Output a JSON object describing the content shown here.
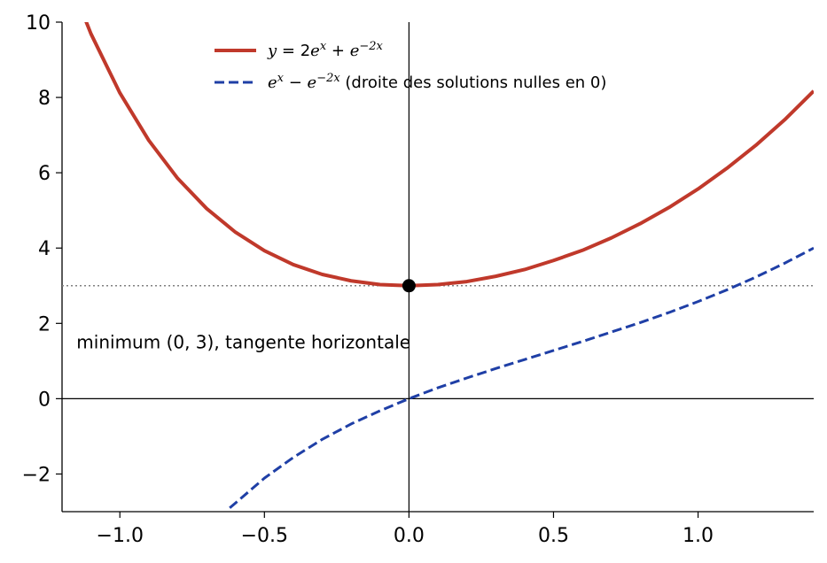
{
  "chart_data": {
    "type": "line",
    "xlim": [
      -1.2,
      1.4
    ],
    "ylim": [
      -3,
      10
    ],
    "x_ticks": [
      -1.0,
      -0.5,
      0.0,
      0.5,
      1.0
    ],
    "x_tick_labels": [
      "−1.0",
      "−0.5",
      "0.0",
      "0.5",
      "1.0"
    ],
    "y_ticks": [
      -2,
      0,
      2,
      4,
      6,
      8,
      10
    ],
    "y_tick_labels": [
      "−2",
      "0",
      "2",
      "4",
      "6",
      "8",
      "10"
    ],
    "grid": false,
    "legend_position": "top-center",
    "reference_line_y": 3,
    "series": [
      {
        "name_math": "y = 2e^x + e^{-2x}",
        "name_parts": [
          {
            "t": "y",
            "math": true
          },
          {
            "t": " = 2",
            "math": false
          },
          {
            "t": "e",
            "math": true
          },
          {
            "t": "x",
            "math": true,
            "sup": true
          },
          {
            "t": " + ",
            "math": false
          },
          {
            "t": "e",
            "math": true
          },
          {
            "t": "−2x",
            "math": true,
            "sup": true
          }
        ],
        "color": "#c0392b",
        "style": "solid",
        "x": [
          -1.2,
          -1.1,
          -1.0,
          -0.9,
          -0.8,
          -0.7,
          -0.6,
          -0.5,
          -0.4,
          -0.3,
          -0.2,
          -0.1,
          0.0,
          0.1,
          0.2,
          0.3,
          0.4,
          0.5,
          0.6,
          0.7,
          0.8,
          0.9,
          1.0,
          1.1,
          1.2,
          1.3,
          1.4
        ],
        "y": [
          11.62,
          9.69,
          8.12,
          6.86,
          5.85,
          5.05,
          4.42,
          3.93,
          3.56,
          3.3,
          3.13,
          3.03,
          3.0,
          3.03,
          3.11,
          3.25,
          3.43,
          3.67,
          3.94,
          4.27,
          4.65,
          5.08,
          5.57,
          6.12,
          6.73,
          7.41,
          8.17
        ]
      },
      {
        "name_parts": [
          {
            "t": "e",
            "math": true
          },
          {
            "t": "x",
            "math": true,
            "sup": true
          },
          {
            "t": " − ",
            "math": false
          },
          {
            "t": "e",
            "math": true
          },
          {
            "t": "−2x",
            "math": true,
            "sup": true
          },
          {
            "t": " (droite des solutions nulles en 0)",
            "math": false
          }
        ],
        "color": "#1f3fa6",
        "style": "dashed",
        "x": [
          -0.62,
          -0.6,
          -0.5,
          -0.4,
          -0.3,
          -0.2,
          -0.1,
          0.0,
          0.1,
          0.2,
          0.3,
          0.4,
          0.5,
          0.6,
          0.7,
          0.8,
          0.9,
          1.0,
          1.1,
          1.2,
          1.3,
          1.4
        ],
        "y": [
          -2.9,
          -2.77,
          -2.11,
          -1.56,
          -1.08,
          -0.67,
          -0.32,
          0.0,
          0.29,
          0.55,
          0.8,
          1.04,
          1.28,
          1.52,
          1.77,
          2.02,
          2.29,
          2.58,
          2.89,
          3.23,
          3.6,
          4.0
        ]
      }
    ],
    "markers": [
      {
        "x": 0,
        "y": 3,
        "color": "#000000"
      }
    ],
    "annotations": [
      {
        "text": "minimum (0, 3), tangente horizontale",
        "x": -1.15,
        "y": 1.5
      }
    ]
  }
}
